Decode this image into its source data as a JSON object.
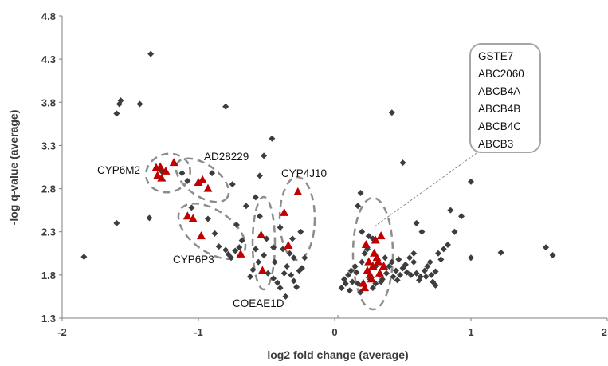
{
  "chart_data": {
    "type": "scatter",
    "title": "",
    "xlabel": "log2 fold change (average)",
    "ylabel": "-log q-value (average)",
    "xlim": [
      -2,
      2
    ],
    "ylim": [
      1.3,
      4.8
    ],
    "x_ticks": [
      -2,
      -1,
      0,
      1,
      2
    ],
    "x_tick_labels": [
      "-2",
      "-1",
      "0",
      "1",
      "2"
    ],
    "y_ticks": [
      1.3,
      1.8,
      2.3,
      2.8,
      3.3,
      3.8,
      4.3,
      4.8
    ],
    "y_tick_labels": [
      "1.3",
      "1.8",
      "2.3",
      "2.8",
      "3.3",
      "3.8",
      "4.3",
      "4.8"
    ],
    "grid": false,
    "colors": {
      "other_genes": "#3d3d3d",
      "highlighted_genes": "#c00000",
      "ellipse": "#8c8c8c",
      "axis": "#7f7f7f"
    },
    "series": [
      {
        "marker": "diamond",
        "points": [
          [
            -1.84,
            2.01
          ],
          [
            -1.6,
            2.4
          ],
          [
            -1.58,
            3.78
          ],
          [
            -1.57,
            3.82
          ],
          [
            -1.6,
            3.67
          ],
          [
            -1.43,
            3.78
          ],
          [
            -1.36,
            2.46
          ],
          [
            -1.35,
            4.36
          ],
          [
            -1.27,
            3.0
          ],
          [
            -1.12,
            2.98
          ],
          [
            -1.08,
            2.89
          ],
          [
            -0.9,
            2.98
          ],
          [
            -0.8,
            3.75
          ],
          [
            -0.75,
            2.85
          ],
          [
            -1.05,
            2.58
          ],
          [
            -0.93,
            2.45
          ],
          [
            -0.88,
            2.28
          ],
          [
            -0.85,
            2.13
          ],
          [
            -0.8,
            2.09
          ],
          [
            -0.78,
            2.04
          ],
          [
            -0.76,
            2.0
          ],
          [
            -0.73,
            2.08
          ],
          [
            -0.7,
            2.12
          ],
          [
            -0.68,
            2.2
          ],
          [
            -0.72,
            2.38
          ],
          [
            -0.65,
            2.6
          ],
          [
            -0.58,
            2.7
          ],
          [
            -0.55,
            2.95
          ],
          [
            -0.52,
            3.18
          ],
          [
            -0.46,
            3.38
          ],
          [
            -0.62,
            1.78
          ],
          [
            -0.6,
            1.86
          ],
          [
            -0.56,
            1.95
          ],
          [
            -0.52,
            2.03
          ],
          [
            -0.49,
            1.82
          ],
          [
            -0.45,
            1.76
          ],
          [
            -0.42,
            1.71
          ],
          [
            -0.4,
            1.65
          ],
          [
            -0.37,
            1.82
          ],
          [
            -0.35,
            1.9
          ],
          [
            -0.32,
            1.8
          ],
          [
            -0.3,
            1.73
          ],
          [
            -0.28,
            1.66
          ],
          [
            -0.26,
            1.85
          ],
          [
            -0.24,
            1.88
          ],
          [
            -0.33,
            2.05
          ],
          [
            -0.45,
            2.12
          ],
          [
            -0.5,
            2.22
          ],
          [
            -0.4,
            2.35
          ],
          [
            -0.36,
            1.55
          ],
          [
            -0.31,
            2.22
          ],
          [
            -0.22,
            2.0
          ],
          [
            -0.55,
            2.48
          ],
          [
            -0.38,
            2.1
          ],
          [
            -0.3,
            2.0
          ],
          [
            -0.44,
            1.95
          ],
          [
            -0.25,
            2.3
          ],
          [
            -0.58,
            2.1
          ],
          [
            0.05,
            1.65
          ],
          [
            0.07,
            1.75
          ],
          [
            0.1,
            1.8
          ],
          [
            0.12,
            1.85
          ],
          [
            0.15,
            1.9
          ],
          [
            0.17,
            1.7
          ],
          [
            0.19,
            1.6
          ],
          [
            0.2,
            1.95
          ],
          [
            0.22,
            2.05
          ],
          [
            0.24,
            2.1
          ],
          [
            0.26,
            1.75
          ],
          [
            0.28,
            1.65
          ],
          [
            0.3,
            1.7
          ],
          [
            0.33,
            1.8
          ],
          [
            0.35,
            1.75
          ],
          [
            0.38,
            1.82
          ],
          [
            0.4,
            1.9
          ],
          [
            0.42,
            1.95
          ],
          [
            0.45,
            1.85
          ],
          [
            0.48,
            1.8
          ],
          [
            0.5,
            1.88
          ],
          [
            0.53,
            1.83
          ],
          [
            0.55,
            2.0
          ],
          [
            0.58,
            1.95
          ],
          [
            0.6,
            1.82
          ],
          [
            0.63,
            1.78
          ],
          [
            0.66,
            1.85
          ],
          [
            0.68,
            1.9
          ],
          [
            0.7,
            1.95
          ],
          [
            0.72,
            1.72
          ],
          [
            0.74,
            1.84
          ],
          [
            0.76,
            2.05
          ],
          [
            0.78,
            1.98
          ],
          [
            0.8,
            2.1
          ],
          [
            0.83,
            2.15
          ],
          [
            0.85,
            2.55
          ],
          [
            0.93,
            2.48
          ],
          [
            0.6,
            2.4
          ],
          [
            0.42,
            3.68
          ],
          [
            0.5,
            3.1
          ],
          [
            0.58,
            2.05
          ],
          [
            0.28,
            2.22
          ],
          [
            0.2,
            2.3
          ],
          [
            0.17,
            2.6
          ],
          [
            0.19,
            2.75
          ],
          [
            0.25,
            2.25
          ],
          [
            0.3,
            1.9
          ],
          [
            0.37,
            2.0
          ],
          [
            0.43,
            1.78
          ],
          [
            0.47,
            1.98
          ],
          [
            0.52,
            1.92
          ],
          [
            0.67,
            1.78
          ],
          [
            0.74,
            1.68
          ],
          [
            0.64,
            2.3
          ],
          [
            0.56,
            1.8
          ],
          [
            0.88,
            2.3
          ],
          [
            1.0,
            2.0
          ],
          [
            1.0,
            2.88
          ],
          [
            1.22,
            2.06
          ],
          [
            1.55,
            2.12
          ],
          [
            1.6,
            2.03
          ],
          [
            0.08,
            1.7
          ],
          [
            0.13,
            1.72
          ],
          [
            0.16,
            1.83
          ],
          [
            0.11,
            1.62
          ],
          [
            0.34,
            1.72
          ],
          [
            0.46,
            1.74
          ],
          [
            0.62,
            1.74
          ],
          [
            0.71,
            1.8
          ]
        ]
      },
      {
        "marker": "triangle",
        "points": [
          [
            -1.31,
            3.04
          ],
          [
            -1.28,
            3.05
          ],
          [
            -1.3,
            2.95
          ],
          [
            -1.27,
            2.92
          ],
          [
            -1.24,
            3.0
          ],
          [
            -1.18,
            3.1
          ],
          [
            -1.0,
            2.87
          ],
          [
            -0.97,
            2.9
          ],
          [
            -0.93,
            2.8
          ],
          [
            -1.08,
            2.48
          ],
          [
            -1.04,
            2.45
          ],
          [
            -0.98,
            2.25
          ],
          [
            -0.69,
            2.04
          ],
          [
            -0.54,
            2.26
          ],
          [
            -0.53,
            1.85
          ],
          [
            -0.37,
            2.52
          ],
          [
            -0.34,
            2.14
          ],
          [
            -0.27,
            2.76
          ],
          [
            0.23,
            2.15
          ],
          [
            0.26,
            1.8
          ],
          [
            0.28,
            1.9
          ],
          [
            0.3,
            2.2
          ],
          [
            0.31,
            2.0
          ],
          [
            0.32,
            1.95
          ],
          [
            0.34,
            2.25
          ],
          [
            0.22,
            1.65
          ],
          [
            0.24,
            1.85
          ],
          [
            0.36,
            1.9
          ],
          [
            0.27,
            1.75
          ],
          [
            0.33,
            1.82
          ],
          [
            0.29,
            2.05
          ],
          [
            0.21,
            1.7
          ],
          [
            0.25,
            1.95
          ]
        ]
      }
    ],
    "annotations": [
      {
        "id": "cyp6m2",
        "label": "CYP6M2"
      },
      {
        "id": "ad28229",
        "label": "AD28229"
      },
      {
        "id": "cyp4j10",
        "label": "CYP4J10"
      },
      {
        "id": "cyp6p3",
        "label": "CYP6P3"
      },
      {
        "id": "coeae1d",
        "label": "COEAE1D"
      }
    ],
    "callout_box": {
      "labels": [
        "GSTE7",
        "ABC2060",
        "ABCB4A",
        "ABCB4B",
        "ABCB4C",
        "ABCB3"
      ]
    }
  }
}
